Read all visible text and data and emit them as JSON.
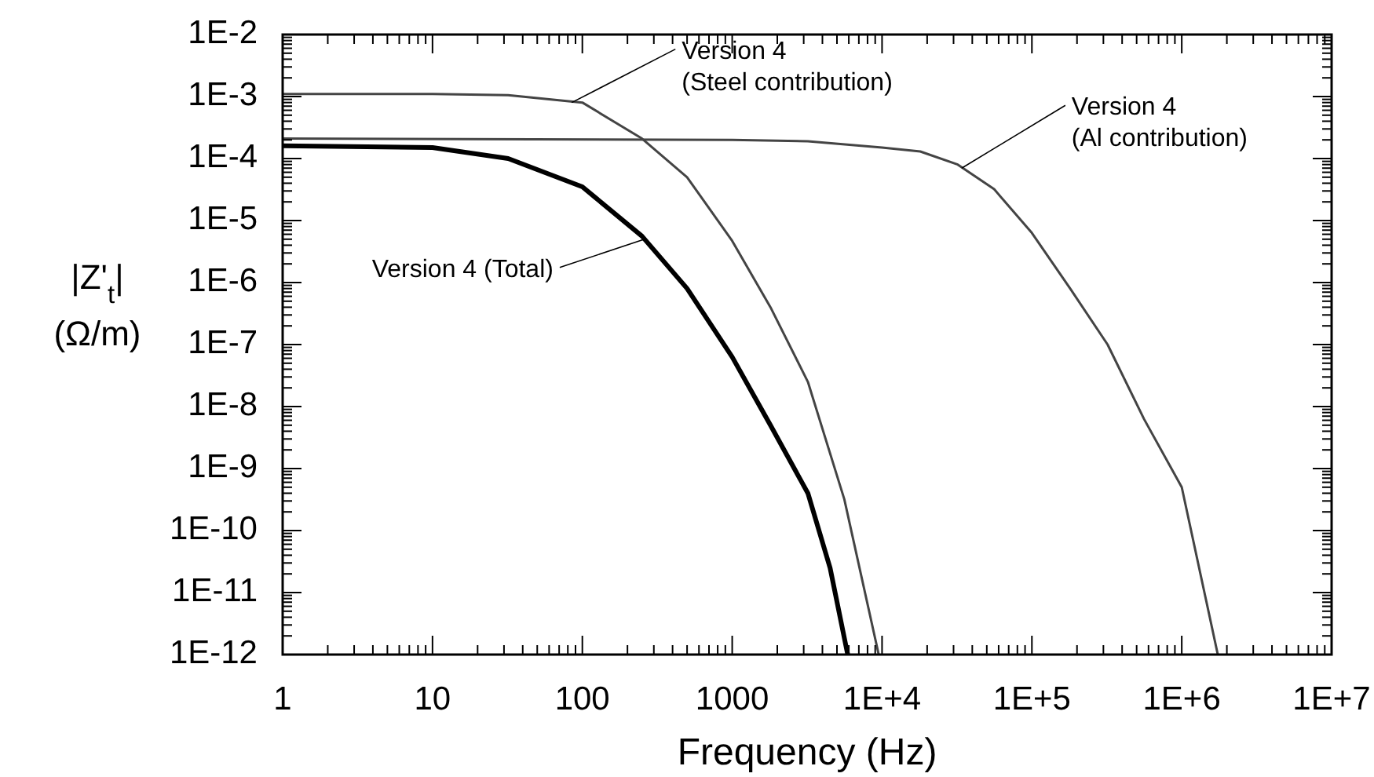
{
  "chart_data": {
    "type": "line",
    "xlabel": "Frequency (Hz)",
    "ylabel": "|Z'$_{t}$|\n(Ω/m)",
    "log": "xy",
    "grid": false,
    "legend": false,
    "marker": "none",
    "line_style": "solid",
    "xlim": [
      1,
      10000000
    ],
    "ylim": [
      1e-12,
      0.01
    ],
    "xticks": [
      1,
      10,
      100,
      1000,
      {
        "value": 10000,
        "label": "1E+4"
      },
      {
        "value": 100000,
        "label": "1E+5"
      },
      {
        "value": 1000000,
        "label": "1E+6"
      },
      {
        "value": 10000000,
        "label": "1E+7"
      }
    ],
    "yticks": [
      {
        "value": 1e-12,
        "label": "1E-12"
      },
      {
        "value": 1e-11,
        "label": "1E-11"
      },
      {
        "value": 1e-10,
        "label": "1E-10"
      },
      {
        "value": 1e-09,
        "label": "1E-9"
      },
      {
        "value": 1e-08,
        "label": "1E-8"
      },
      {
        "value": 1e-07,
        "label": "1E-7"
      },
      {
        "value": 1e-06,
        "label": "1E-6"
      },
      {
        "value": 1e-05,
        "label": "1E-5"
      },
      {
        "value": 0.0001,
        "label": "1E-4"
      },
      {
        "value": 0.001,
        "label": "1E-3"
      },
      {
        "value": 0.01,
        "label": "1E-2"
      }
    ],
    "series": [
      {
        "color": "#000000",
        "x": [
          1,
          10,
          32,
          100,
          250,
          500,
          1000,
          1800,
          3200,
          4500,
          5900
        ],
        "values": [
          0.00016,
          0.00015,
          0.0001,
          3.5e-05,
          5.6e-06,
          8e-07,
          6.3e-08,
          5e-09,
          4e-10,
          2.5e-11,
          1e-12
        ]
      },
      {
        "color": "#444444",
        "x": [
          1,
          10,
          32,
          100,
          250,
          500,
          1000,
          1800,
          3200,
          5600,
          9500
        ],
        "values": [
          0.0011,
          0.0011,
          0.00105,
          0.0008,
          0.00021,
          5e-05,
          4.7e-06,
          4e-07,
          2.5e-08,
          3.2e-10,
          1e-12
        ]
      },
      {
        "color": "#444444",
        "x": [
          1,
          1000,
          3200,
          10000,
          18000,
          32000,
          56000,
          100000,
          180000,
          320000,
          560000,
          1000000,
          1740000
        ],
        "values": [
          0.00021,
          0.0002,
          0.00019,
          0.00015,
          0.00013,
          8e-05,
          3.2e-05,
          6.3e-06,
          8e-07,
          1e-07,
          6.3e-09,
          5e-10,
          1e-12
        ]
      }
    ],
    "annotations": [
      {
        "text": "Version 4 (Total)",
        "x": 260,
        "y": 5e-06
      },
      {
        "text": "Version 4\n(Steel contribution)",
        "x": 85,
        "y": 0.0008
      },
      {
        "text": "Version 4\n(Al contribution)",
        "x": 34000,
        "y": 7e-05
      }
    ]
  }
}
